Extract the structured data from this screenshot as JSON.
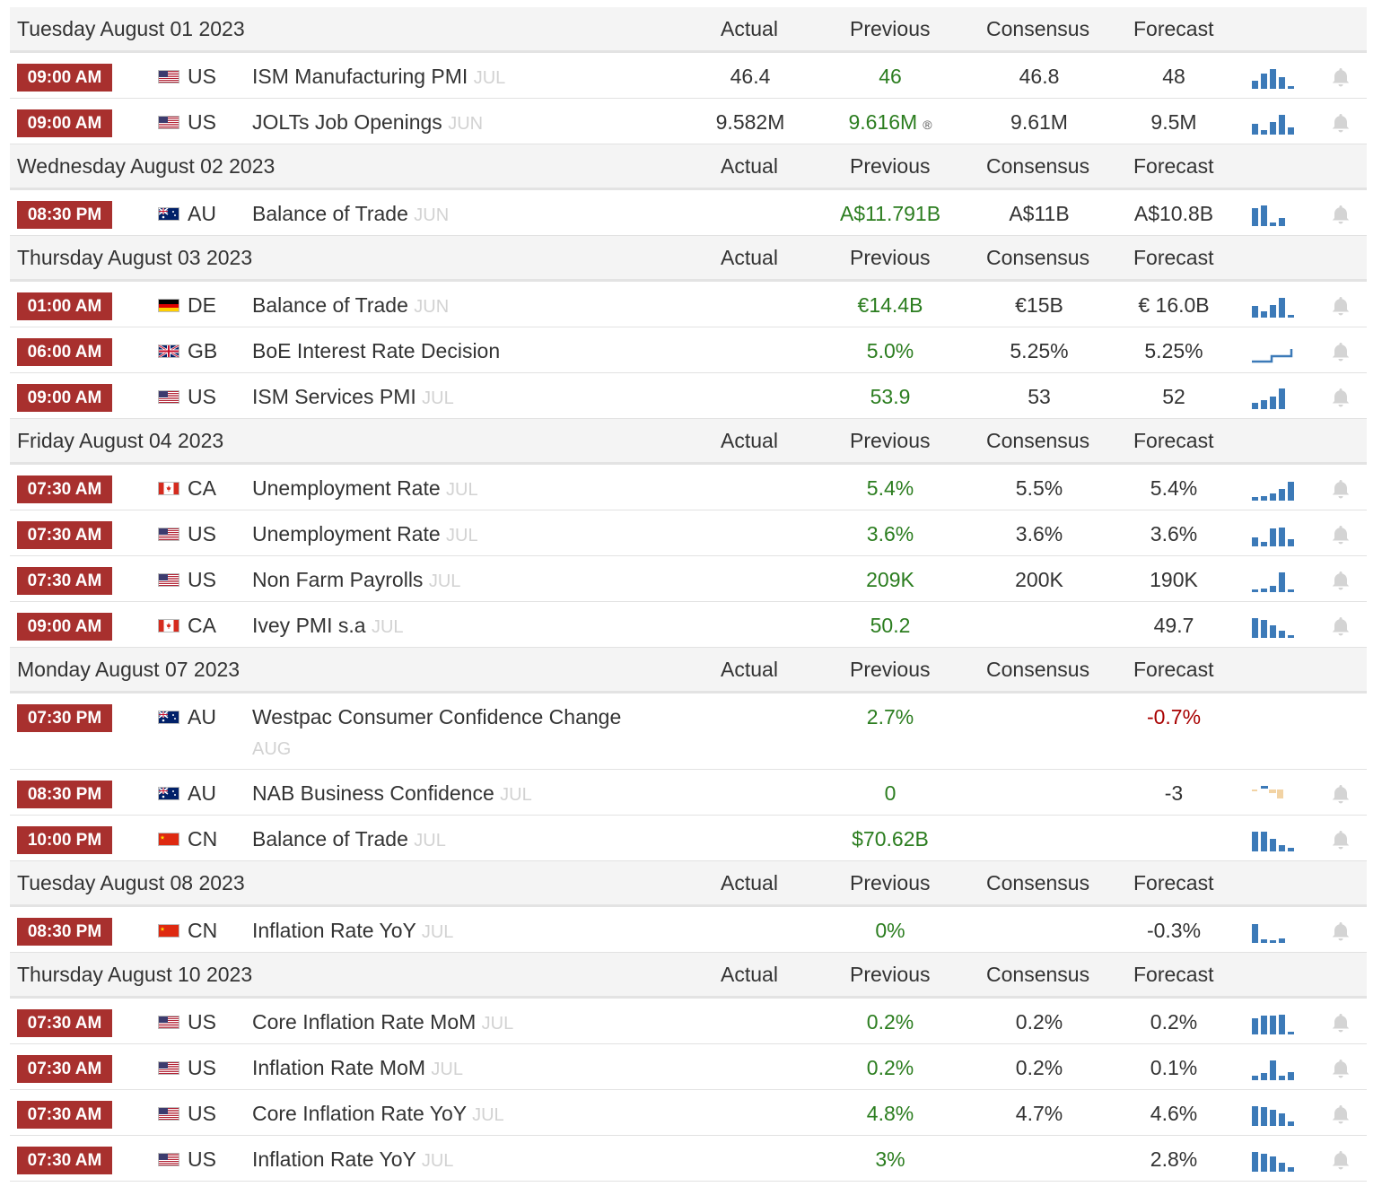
{
  "columns": {
    "actual": "Actual",
    "previous": "Previous",
    "consensus": "Consensus",
    "forecast": "Forecast"
  },
  "days": [
    {
      "date": "Tuesday August 01 2023",
      "events": [
        {
          "time": "09:00 AM",
          "flag": "us",
          "country": "US",
          "name": "ISM Manufacturing PMI",
          "ref": "JUL",
          "actual": "46.4",
          "previous": "46",
          "consensus": "46.8",
          "forecast": "48",
          "spark": {
            "color": "#3c7ab8",
            "bars": [
              0.35,
              0.65,
              0.85,
              0.5,
              0.1
            ]
          }
        },
        {
          "time": "09:00 AM",
          "flag": "us",
          "country": "US",
          "name": "JOLTs Job Openings",
          "ref": "JUN",
          "actual": "9.582M",
          "previous": "9.616M",
          "previous_mark": "®",
          "consensus": "9.61M",
          "forecast": "9.5M",
          "spark": {
            "color": "#3c7ab8",
            "bars": [
              0.45,
              0.2,
              0.55,
              0.85,
              0.3
            ]
          }
        }
      ]
    },
    {
      "date": "Wednesday August 02 2023",
      "events": [
        {
          "time": "08:30 PM",
          "flag": "au",
          "country": "AU",
          "name": "Balance of Trade",
          "ref": "JUN",
          "actual": "",
          "previous": "A$11.791B",
          "consensus": "A$11B",
          "forecast": "A$10.8B",
          "spark": {
            "color": "#3c7ab8",
            "bars": [
              0.75,
              0.9,
              0.15,
              0.35
            ]
          }
        }
      ]
    },
    {
      "date": "Thursday August 03 2023",
      "events": [
        {
          "time": "01:00 AM",
          "flag": "de",
          "country": "DE",
          "name": "Balance of Trade",
          "ref": "JUN",
          "actual": "",
          "previous": "€14.4B",
          "consensus": "€15B",
          "forecast": "€ 16.0B",
          "spark": {
            "color": "#3c7ab8",
            "bars": [
              0.5,
              0.25,
              0.55,
              0.85,
              0.1
            ]
          }
        },
        {
          "time": "06:00 AM",
          "flag": "gb",
          "country": "GB",
          "name": "BoE Interest Rate Decision",
          "ref": "",
          "actual": "",
          "previous": "5.0%",
          "consensus": "5.25%",
          "forecast": "5.25%",
          "spark": {
            "color": "#3c7ab8",
            "kind": "step"
          }
        },
        {
          "time": "09:00 AM",
          "flag": "us",
          "country": "US",
          "name": "ISM Services PMI",
          "ref": "JUL",
          "actual": "",
          "previous": "53.9",
          "consensus": "53",
          "forecast": "52",
          "spark": {
            "color": "#3c7ab8",
            "bars": [
              0.25,
              0.4,
              0.55,
              0.9
            ]
          }
        }
      ]
    },
    {
      "date": "Friday August 04 2023",
      "events": [
        {
          "time": "07:30 AM",
          "flag": "ca",
          "country": "CA",
          "name": "Unemployment Rate",
          "ref": "JUL",
          "actual": "",
          "previous": "5.4%",
          "consensus": "5.5%",
          "forecast": "5.4%",
          "spark": {
            "color": "#3c7ab8",
            "bars": [
              0.15,
              0.2,
              0.3,
              0.5,
              0.8
            ]
          }
        },
        {
          "time": "07:30 AM",
          "flag": "us",
          "country": "US",
          "name": "Unemployment Rate",
          "ref": "JUL",
          "actual": "",
          "previous": "3.6%",
          "consensus": "3.6%",
          "forecast": "3.6%",
          "spark": {
            "color": "#3c7ab8",
            "bars": [
              0.4,
              0.2,
              0.75,
              0.8,
              0.3
            ]
          }
        },
        {
          "time": "07:30 AM",
          "flag": "us",
          "country": "US",
          "name": "Non Farm Payrolls",
          "ref": "JUL",
          "actual": "",
          "previous": "209K",
          "consensus": "200K",
          "forecast": "190K",
          "spark": {
            "color": "#3c7ab8",
            "bars": [
              0.1,
              0.15,
              0.25,
              0.85,
              0.1
            ]
          }
        },
        {
          "time": "09:00 AM",
          "flag": "ca",
          "country": "CA",
          "name": "Ivey PMI s.a",
          "ref": "JUL",
          "actual": "",
          "previous": "50.2",
          "consensus": "",
          "forecast": "49.7",
          "spark": {
            "color": "#3c7ab8",
            "bars": [
              0.85,
              0.75,
              0.55,
              0.3,
              0.1
            ]
          }
        }
      ]
    },
    {
      "date": "Monday August 07 2023",
      "events": [
        {
          "time": "07:30 PM",
          "flag": "au",
          "country": "AU",
          "name": "Westpac Consumer Confidence Change",
          "ref": "AUG",
          "tall": true,
          "actual": "",
          "previous": "2.7%",
          "consensus": "",
          "forecast": "-0.7%",
          "forecast_negative": true,
          "spark": null
        },
        {
          "time": "08:30 PM",
          "flag": "au",
          "country": "AU",
          "name": "NAB Business Confidence",
          "ref": "JUL",
          "actual": "",
          "previous": "0",
          "consensus": "",
          "forecast": "-3",
          "spark": {
            "color": "#f2d3a4",
            "kind": "nab"
          }
        },
        {
          "time": "10:00 PM",
          "flag": "cn",
          "country": "CN",
          "name": "Balance of Trade",
          "ref": "JUL",
          "actual": "",
          "previous": "$70.62B",
          "consensus": "",
          "forecast": "",
          "spark": {
            "color": "#3c7ab8",
            "bars": [
              0.85,
              0.85,
              0.55,
              0.25,
              0.15
            ]
          }
        }
      ]
    },
    {
      "date": "Tuesday August 08 2023",
      "events": [
        {
          "time": "08:30 PM",
          "flag": "cn",
          "country": "CN",
          "name": "Inflation Rate YoY",
          "ref": "JUL",
          "actual": "",
          "previous": "0%",
          "consensus": "",
          "forecast": "-0.3%",
          "spark": {
            "color": "#3c7ab8",
            "bars": [
              0.8,
              0.15,
              0.1,
              0.2
            ]
          }
        }
      ]
    },
    {
      "date": "Thursday August 10 2023",
      "events": [
        {
          "time": "07:30 AM",
          "flag": "us",
          "country": "US",
          "name": "Core Inflation Rate MoM",
          "ref": "JUL",
          "actual": "",
          "previous": "0.2%",
          "consensus": "0.2%",
          "forecast": "0.2%",
          "spark": {
            "color": "#3c7ab8",
            "bars": [
              0.7,
              0.8,
              0.8,
              0.85,
              0.1
            ]
          }
        },
        {
          "time": "07:30 AM",
          "flag": "us",
          "country": "US",
          "name": "Inflation Rate MoM",
          "ref": "JUL",
          "actual": "",
          "previous": "0.2%",
          "consensus": "0.2%",
          "forecast": "0.1%",
          "spark": {
            "color": "#3c7ab8",
            "bars": [
              0.2,
              0.3,
              0.85,
              0.2,
              0.35
            ]
          }
        },
        {
          "time": "07:30 AM",
          "flag": "us",
          "country": "US",
          "name": "Core Inflation Rate YoY",
          "ref": "JUL",
          "actual": "",
          "previous": "4.8%",
          "consensus": "4.7%",
          "forecast": "4.6%",
          "spark": {
            "color": "#3c7ab8",
            "bars": [
              0.85,
              0.8,
              0.7,
              0.55,
              0.2
            ]
          }
        },
        {
          "time": "07:30 AM",
          "flag": "us",
          "country": "US",
          "name": "Inflation Rate YoY",
          "ref": "JUL",
          "actual": "",
          "previous": "3%",
          "consensus": "",
          "forecast": "2.8%",
          "spark": {
            "color": "#3c7ab8",
            "bars": [
              0.85,
              0.75,
              0.65,
              0.4,
              0.2
            ]
          }
        }
      ]
    }
  ]
}
